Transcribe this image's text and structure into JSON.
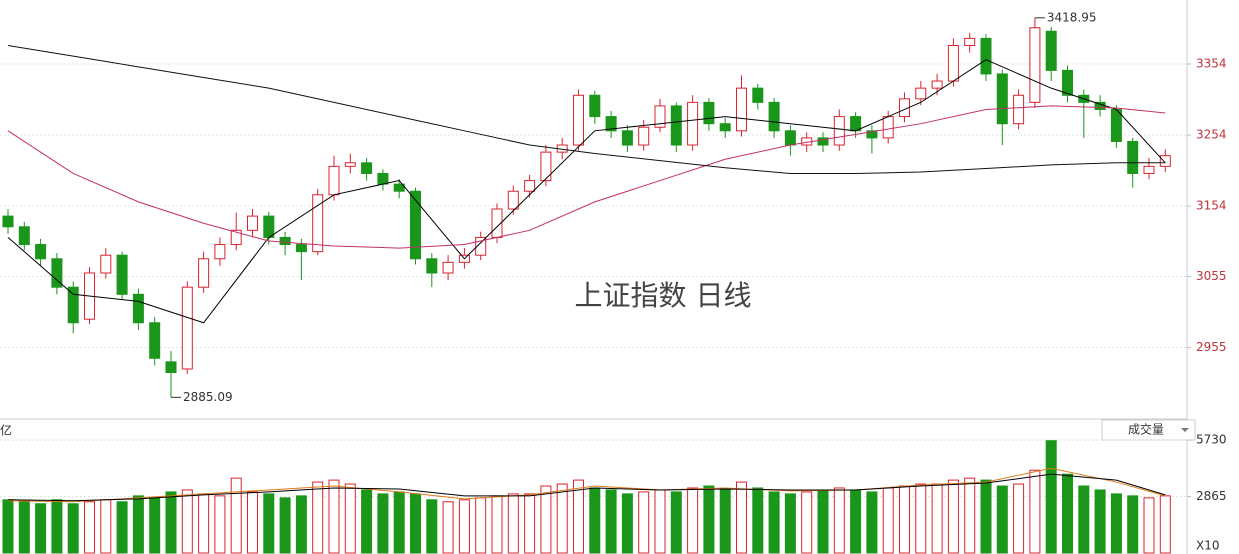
{
  "chart_data": {
    "type": "candlestick",
    "title": "上证指数 日线",
    "up_color": "#d9232e",
    "down_color": "#1a961a",
    "open": [
      3140,
      3125,
      3100,
      3080,
      3040,
      2995,
      3060,
      3085,
      3030,
      2990,
      2935,
      2925,
      3040,
      3080,
      3100,
      3120,
      3140,
      3110,
      3100,
      3090,
      3170,
      3210,
      3215,
      3200,
      3185,
      3175,
      3080,
      3060,
      3075,
      3085,
      3110,
      3150,
      3175,
      3190,
      3230,
      3240,
      3310,
      3280,
      3260,
      3240,
      3265,
      3295,
      3240,
      3300,
      3270,
      3260,
      3320,
      3300,
      3260,
      3240,
      3250,
      3240,
      3280,
      3260,
      3250,
      3280,
      3305,
      3320,
      3330,
      3380,
      3390,
      3340,
      3270,
      3300,
      3400,
      3345,
      3310,
      3300,
      3290,
      3245,
      3200,
      3210
    ],
    "high": [
      3150,
      3132,
      3108,
      3088,
      3048,
      3068,
      3095,
      3090,
      3038,
      2998,
      2950,
      3048,
      3090,
      3110,
      3145,
      3150,
      3146,
      3118,
      3108,
      3178,
      3225,
      3228,
      3222,
      3206,
      3192,
      3180,
      3088,
      3085,
      3095,
      3118,
      3158,
      3183,
      3198,
      3240,
      3250,
      3318,
      3316,
      3288,
      3268,
      3275,
      3305,
      3300,
      3310,
      3306,
      3278,
      3338,
      3326,
      3306,
      3268,
      3258,
      3258,
      3290,
      3286,
      3268,
      3288,
      3314,
      3330,
      3340,
      3390,
      3398,
      3396,
      3346,
      3318,
      3418.95,
      3406,
      3352,
      3318,
      3310,
      3296,
      3250,
      3222,
      3234
    ],
    "low": [
      3115,
      3092,
      3070,
      3030,
      2975,
      2988,
      3052,
      3022,
      2980,
      2930,
      2885.09,
      2918,
      3032,
      3070,
      3092,
      3110,
      3100,
      3085,
      3050,
      3085,
      3162,
      3200,
      3190,
      3176,
      3165,
      3072,
      3040,
      3050,
      3066,
      3078,
      3102,
      3142,
      3166,
      3182,
      3220,
      3232,
      3270,
      3250,
      3230,
      3232,
      3258,
      3230,
      3232,
      3260,
      3250,
      3252,
      3290,
      3250,
      3225,
      3230,
      3230,
      3232,
      3250,
      3228,
      3242,
      3272,
      3296,
      3310,
      3322,
      3370,
      3330,
      3240,
      3262,
      3292,
      3330,
      3300,
      3250,
      3280,
      3236,
      3180,
      3192,
      3202
    ],
    "close": [
      3125,
      3100,
      3080,
      3040,
      2990,
      3060,
      3085,
      3030,
      2990,
      2940,
      2920,
      3040,
      3080,
      3100,
      3120,
      3140,
      3110,
      3100,
      3090,
      3170,
      3210,
      3215,
      3200,
      3185,
      3175,
      3080,
      3060,
      3075,
      3085,
      3110,
      3150,
      3175,
      3190,
      3230,
      3240,
      3310,
      3280,
      3260,
      3240,
      3265,
      3295,
      3240,
      3300,
      3270,
      3260,
      3320,
      3300,
      3260,
      3240,
      3250,
      3240,
      3280,
      3260,
      3250,
      3280,
      3305,
      3320,
      3330,
      3380,
      3390,
      3340,
      3270,
      3310,
      3405,
      3345,
      3310,
      3300,
      3290,
      3245,
      3200,
      3210,
      3225
    ],
    "ylim": [
      2856,
      3444
    ],
    "yticks": [
      2955,
      3055,
      3154,
      3254,
      3354
    ],
    "grid": true,
    "high_label_index": 63,
    "low_label_index": 10,
    "ma": [
      {
        "color": "#000000",
        "x": [
          0,
          4,
          8,
          12,
          16,
          20,
          24,
          28,
          32,
          36,
          40,
          44,
          48,
          52,
          56,
          60,
          64,
          68,
          71
        ],
        "values": [
          3110,
          3030,
          3020,
          2990,
          3110,
          3170,
          3190,
          3080,
          3170,
          3260,
          3270,
          3280,
          3270,
          3260,
          3300,
          3360,
          3320,
          3290,
          3215
        ]
      },
      {
        "color": "#c2306a",
        "x": [
          0,
          4,
          8,
          12,
          16,
          20,
          24,
          28,
          32,
          36,
          40,
          44,
          48,
          52,
          56,
          60,
          64,
          68,
          71
        ],
        "values": [
          3260,
          3200,
          3160,
          3130,
          3105,
          3098,
          3095,
          3100,
          3120,
          3160,
          3190,
          3220,
          3240,
          3255,
          3270,
          3290,
          3295,
          3292,
          3285
        ]
      },
      {
        "color": "#111111",
        "x": [
          0,
          4,
          8,
          12,
          16,
          20,
          24,
          28,
          32,
          36,
          40,
          44,
          48,
          52,
          56,
          60,
          64,
          68,
          71
        ],
        "values": [
          3380,
          3365,
          3350,
          3335,
          3320,
          3300,
          3280,
          3260,
          3240,
          3228,
          3218,
          3208,
          3200,
          3200,
          3202,
          3207,
          3212,
          3215,
          3215
        ]
      }
    ],
    "volume": {
      "type": "bar",
      "label": "成交量",
      "unit": "亿",
      "multiplier": "X10",
      "values": [
        2700,
        2600,
        2500,
        2700,
        2500,
        2600,
        2700,
        2600,
        2900,
        2800,
        3100,
        3200,
        3000,
        2900,
        3800,
        3100,
        3000,
        2800,
        2900,
        3600,
        3700,
        3500,
        3200,
        3000,
        3100,
        3000,
        2700,
        2600,
        2700,
        2800,
        2900,
        3000,
        3000,
        3400,
        3500,
        3700,
        3300,
        3200,
        3000,
        3100,
        3200,
        3100,
        3300,
        3400,
        3200,
        3600,
        3300,
        3100,
        3000,
        3100,
        3200,
        3300,
        3200,
        3100,
        3300,
        3400,
        3500,
        3500,
        3700,
        3800,
        3700,
        3400,
        3500,
        4200,
        5700,
        4000,
        3400,
        3200,
        3000,
        2900,
        2800,
        2900
      ],
      "ylim": [
        0,
        6750
      ],
      "yticks": [
        2865,
        5730
      ],
      "ma": [
        {
          "color": "#e07b1a",
          "x": [
            0,
            4,
            8,
            12,
            16,
            20,
            24,
            28,
            32,
            36,
            40,
            44,
            48,
            52,
            56,
            60,
            64,
            68,
            71
          ],
          "values": [
            2650,
            2600,
            2800,
            3000,
            3200,
            3400,
            3100,
            2750,
            2950,
            3400,
            3200,
            3300,
            3150,
            3200,
            3450,
            3600,
            4300,
            3600,
            2900
          ]
        },
        {
          "color": "#000000",
          "x": [
            0,
            4,
            8,
            12,
            16,
            20,
            24,
            28,
            32,
            36,
            40,
            44,
            48,
            52,
            56,
            60,
            64,
            68,
            71
          ],
          "values": [
            2700,
            2650,
            2750,
            2950,
            3100,
            3300,
            3250,
            2900,
            2900,
            3300,
            3200,
            3250,
            3200,
            3200,
            3400,
            3550,
            4000,
            3700,
            2950
          ]
        }
      ]
    }
  }
}
